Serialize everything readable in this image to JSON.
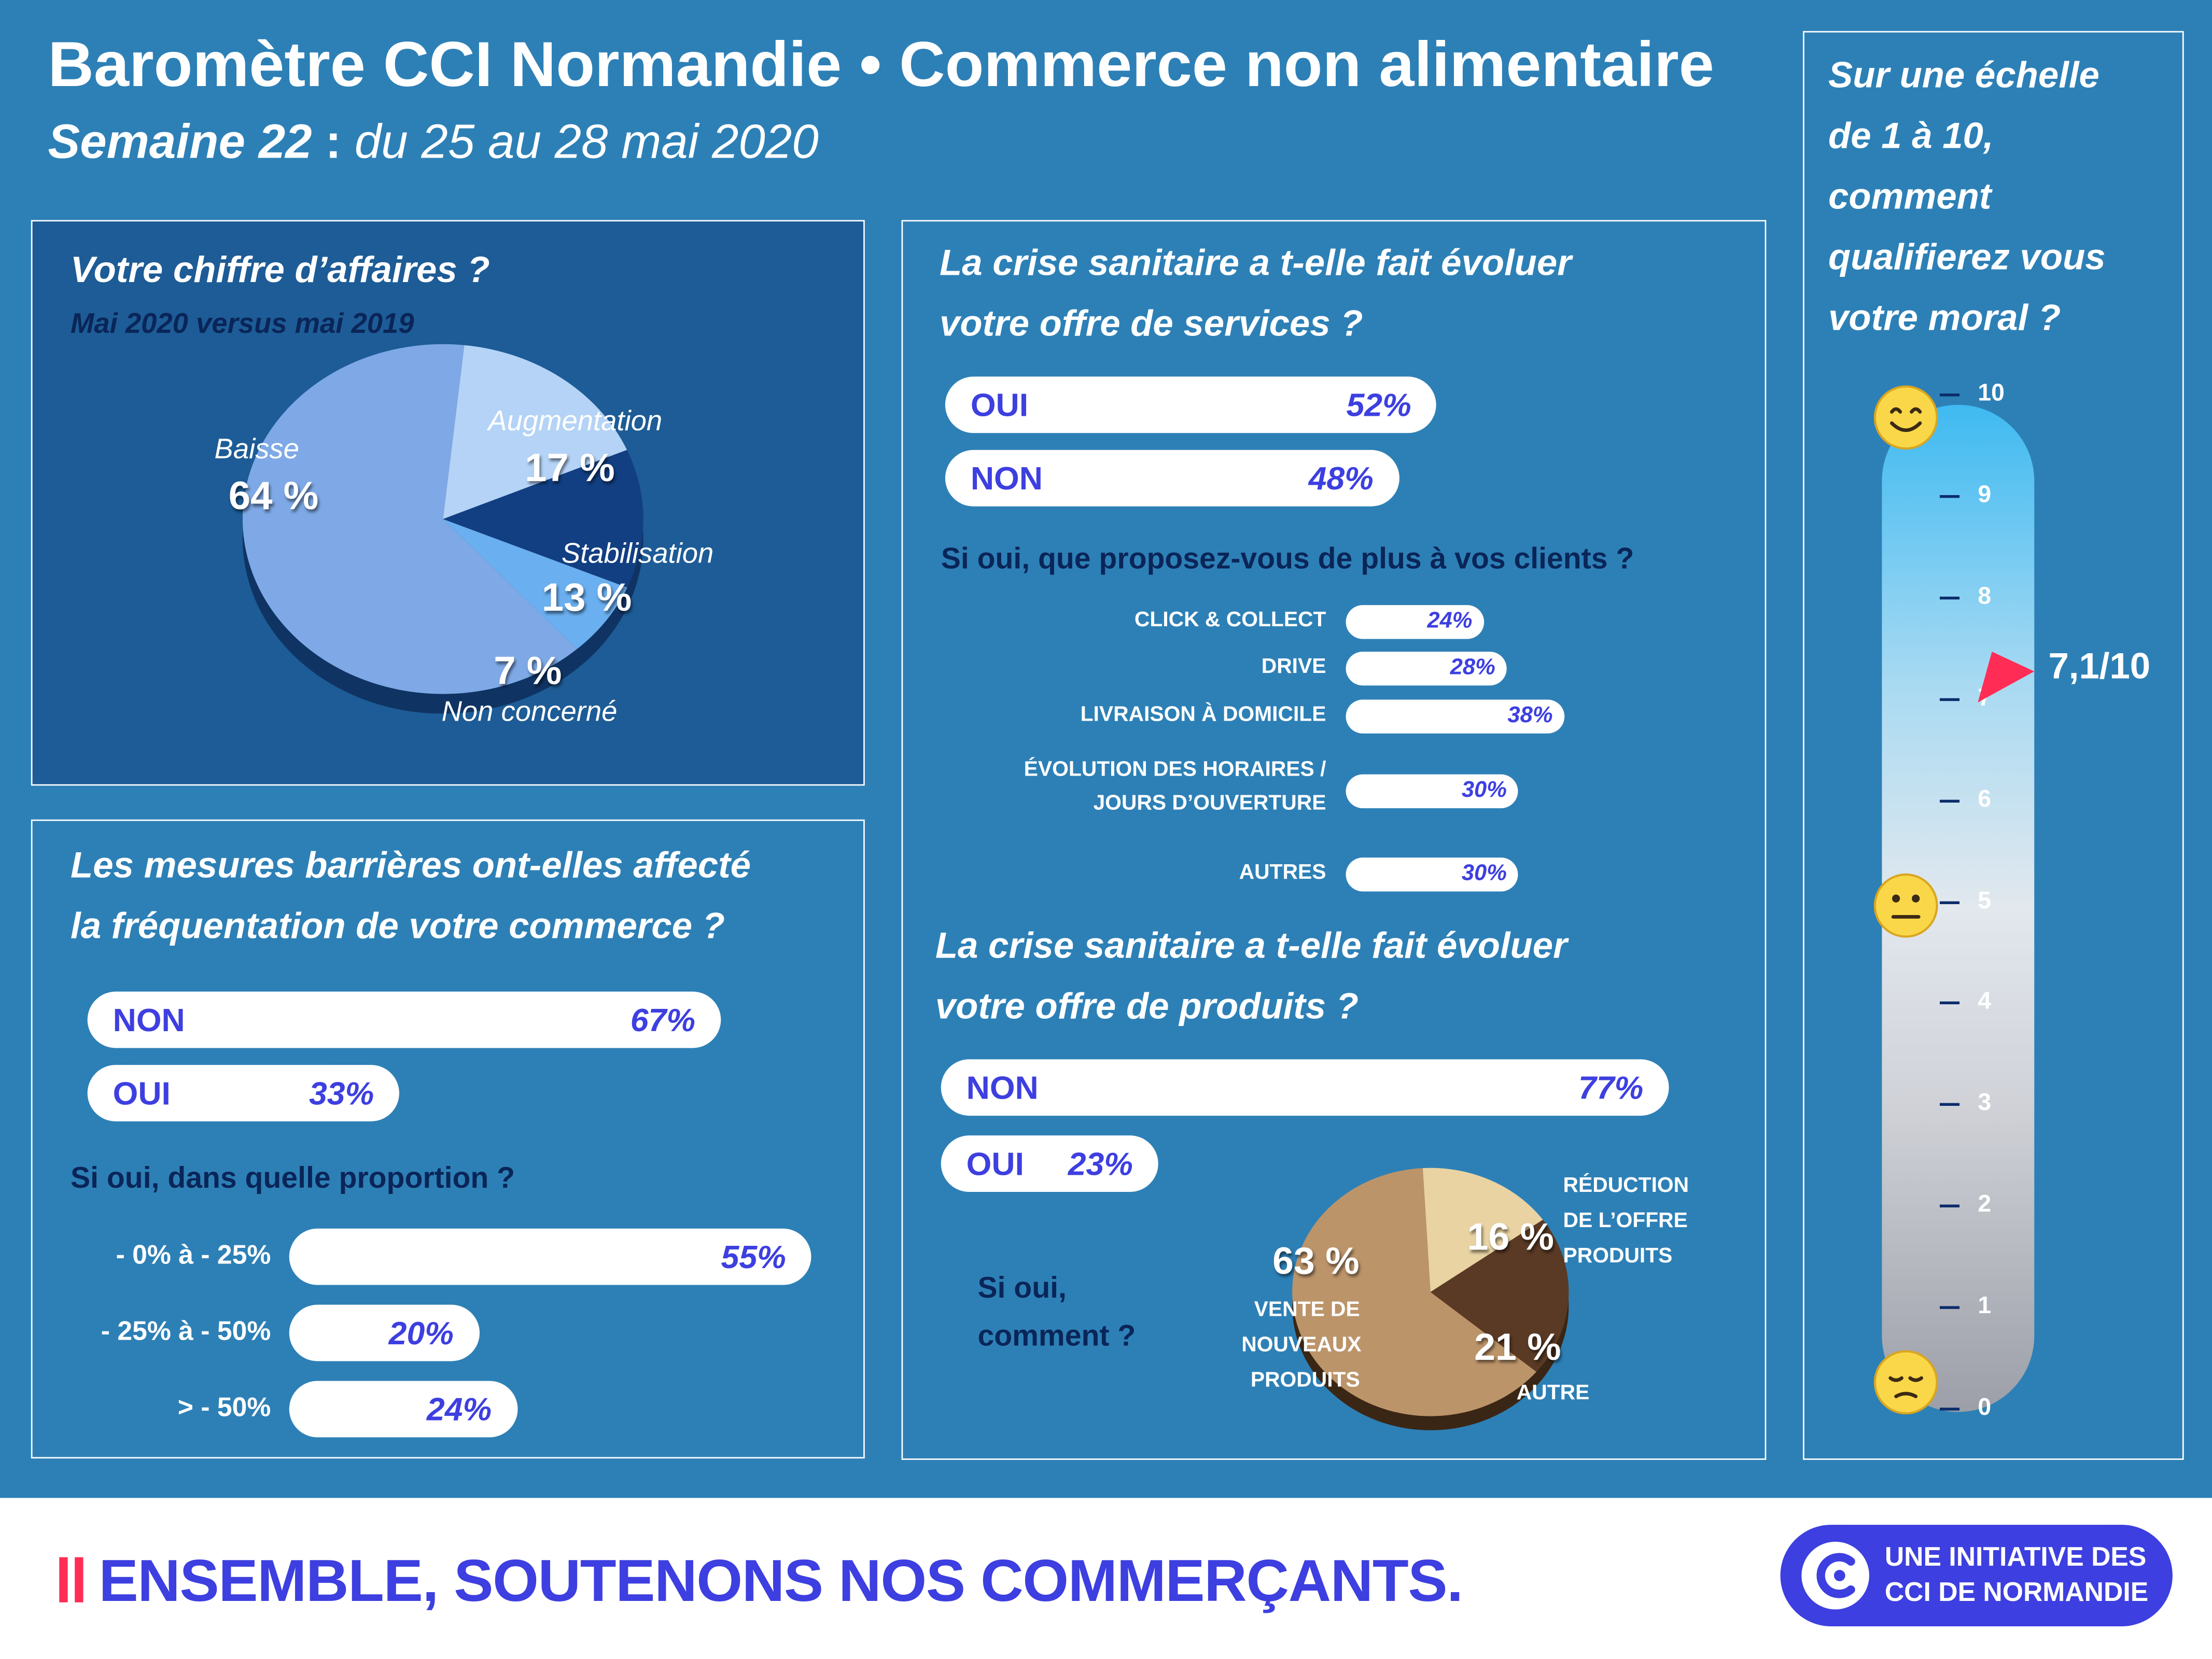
{
  "header": {
    "title": "Baromètre CCI Normandie • Commerce non alimentaire",
    "week_label": "Semaine 22",
    "week_sep": " : ",
    "week_dates": "du 25 au 28 mai 2020"
  },
  "colors": {
    "background": "#2d80b6",
    "panel_dark": "#1d5c96",
    "accent": "#3d3fe0",
    "marker": "#ff2d55"
  },
  "revenue": {
    "title": "Votre chiffre d’affaires ?",
    "subtitle": "Mai 2020 versus mai 2019"
  },
  "barrier": {
    "title_line1": "Les mesures barrières ont-elles affecté",
    "title_line2": "la fréquentation de votre commerce ?",
    "subtitle": "Si oui, dans quelle proportion ?"
  },
  "services": {
    "title_line1": "La crise sanitaire a t-elle fait évoluer",
    "title_line2": "votre offre de services ?",
    "subtitle": "Si oui, que proposez-vous de plus à vos clients ?"
  },
  "products": {
    "title_line1": "La crise sanitaire a t-elle fait évoluer",
    "title_line2": "votre offre de produits ?",
    "question_line1": "Si oui,",
    "question_line2": "comment ?"
  },
  "morale": {
    "title_lines": [
      "Sur une échelle",
      "de 1 à 10,",
      "comment",
      "qualifierez vous",
      "votre moral ?"
    ],
    "score_label": "7,1/10"
  },
  "footer": {
    "slogan": "ENSEMBLE, SOUTENONS NOS COMMERÇANTS.",
    "badge_line1": "UNE INITIATIVE DES",
    "badge_line2": "CCI DE NORMANDIE",
    "logo_icon": "cci-logo-icon"
  },
  "chart_data": [
    {
      "id": "revenue",
      "type": "pie",
      "labels": [
        "Baisse",
        "Augmentation",
        "Stabilisation",
        "Non concerné"
      ],
      "values": [
        64,
        17,
        13,
        7
      ],
      "value_labels": [
        "64 %",
        "17 %",
        "13 %",
        "7 %"
      ],
      "colors": [
        "#7ea9e6",
        "#b4d3f6",
        "#123f82",
        "#6aaff0"
      ]
    },
    {
      "id": "barrier-affected",
      "type": "bar",
      "categories": [
        "NON",
        "OUI"
      ],
      "values": [
        67,
        33
      ],
      "value_labels": [
        "67%",
        "33%"
      ]
    },
    {
      "id": "barrier-proportion",
      "type": "bar",
      "categories": [
        "- 0% à - 25%",
        "- 25% à - 50%",
        "> - 50%"
      ],
      "values": [
        55,
        20,
        24
      ],
      "value_labels": [
        "55%",
        "20%",
        "24%"
      ]
    },
    {
      "id": "services-evolved",
      "type": "bar",
      "categories": [
        "OUI",
        "NON"
      ],
      "values": [
        52,
        48
      ],
      "value_labels": [
        "52%",
        "48%"
      ]
    },
    {
      "id": "services-offered",
      "type": "bar",
      "categories": [
        "CLICK & COLLECT",
        "DRIVE",
        "LIVRAISON À DOMICILE",
        "ÉVOLUTION DES HORAIRES / JOURS D’OUVERTURE",
        "AUTRES"
      ],
      "category_lines": [
        [
          "CLICK & COLLECT"
        ],
        [
          "DRIVE"
        ],
        [
          "LIVRAISON À DOMICILE"
        ],
        [
          "ÉVOLUTION DES HORAIRES /",
          "JOURS D’OUVERTURE"
        ],
        [
          "AUTRES"
        ]
      ],
      "values": [
        24,
        28,
        38,
        30,
        30
      ],
      "value_labels": [
        "24%",
        "28%",
        "38%",
        "30%",
        "30%"
      ]
    },
    {
      "id": "products-evolved",
      "type": "bar",
      "categories": [
        "NON",
        "OUI"
      ],
      "values": [
        77,
        23
      ],
      "value_labels": [
        "77%",
        "23%"
      ]
    },
    {
      "id": "products-how",
      "type": "pie",
      "labels": [
        "VENTE DE NOUVEAUX PRODUITS",
        "RÉDUCTION DE L’OFFRE PRODUITS",
        "AUTRE"
      ],
      "label_lines": [
        [
          "VENTE DE",
          "NOUVEAUX",
          "PRODUITS"
        ],
        [
          "RÉDUCTION",
          "DE L’OFFRE",
          "PRODUITS"
        ],
        [
          "AUTRE"
        ]
      ],
      "values": [
        63,
        16,
        21
      ],
      "value_labels": [
        "63 %",
        "16 %",
        "21 %"
      ],
      "colors": [
        "#bc946a",
        "#e9d3a3",
        "#5a3a24"
      ]
    },
    {
      "id": "morale",
      "type": "gauge",
      "ticks": [
        "0",
        "1",
        "2",
        "3",
        "4",
        "5",
        "6",
        "7",
        "8",
        "9",
        "10"
      ],
      "ylim": [
        0,
        10
      ],
      "value": 7.1
    }
  ]
}
